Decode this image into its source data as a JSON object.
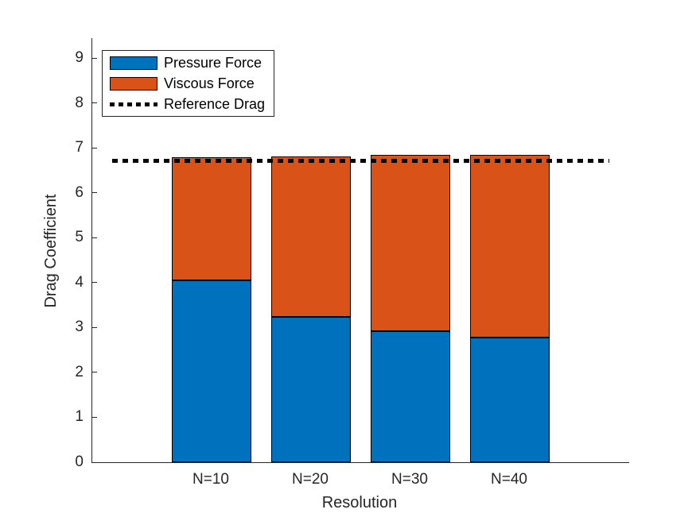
{
  "chart_data": {
    "type": "bar",
    "stacked": true,
    "title": "",
    "xlabel": "Resolution",
    "ylabel": "Drag Coefficient",
    "categories": [
      "N=10",
      "N=20",
      "N=30",
      "N=40"
    ],
    "series": [
      {
        "name": "Pressure Force",
        "color": "#0072BD",
        "values": [
          4.05,
          3.23,
          2.92,
          2.78
        ]
      },
      {
        "name": "Viscous Force",
        "color": "#D95319",
        "values": [
          2.74,
          3.59,
          3.92,
          4.07
        ]
      }
    ],
    "stack_totals": [
      6.79,
      6.82,
      6.84,
      6.85
    ],
    "reference_line": {
      "name": "Reference Drag",
      "value": 6.72,
      "style": "dotted",
      "color": "#000000",
      "x_span": [
        0,
        5
      ]
    },
    "ylim": [
      0,
      9.45
    ],
    "yticks": [
      0,
      1,
      2,
      3,
      4,
      5,
      6,
      7,
      8,
      9
    ],
    "xlim": [
      -0.2,
      5.2
    ],
    "bar_relative_width": 0.8,
    "grid": false,
    "legend": {
      "position": "top-left",
      "entries": [
        "Pressure Force",
        "Viscous Force",
        "Reference Drag"
      ]
    },
    "axis_color": "#262626",
    "bar_edge_color": "#000000",
    "background": "#FFFFFF"
  }
}
